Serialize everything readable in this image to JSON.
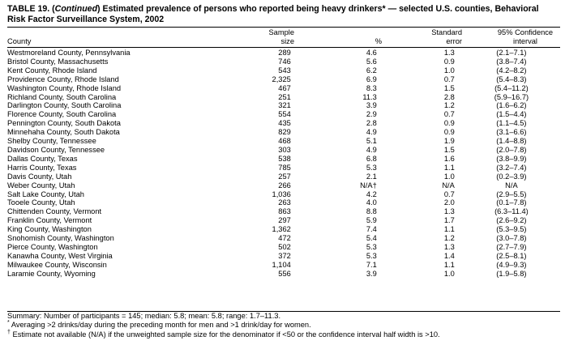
{
  "title": {
    "prefix": "TABLE 19. (",
    "italic": "Continued",
    "rest_line1": ") Estimated prevalence of persons who reported being heavy drinkers* — selected U.S. counties, Behavioral",
    "line2": "Risk Factor Surveillance System, 2002"
  },
  "headers": {
    "county": "County",
    "sample_size_1": "Sample",
    "sample_size_2": "size",
    "pct": "%",
    "se_1": "Standard",
    "se_2": "error",
    "ci_1": "95% Confidence",
    "ci_2": "interval"
  },
  "rows": [
    {
      "county": "Westmoreland County, Pennsylvania",
      "size": "289",
      "pct": "4.6",
      "se": "1.3",
      "ci": "(2.1–7.1)"
    },
    {
      "county": "Bristol County, Massachusetts",
      "size": "746",
      "pct": "5.6",
      "se": "0.9",
      "ci": "(3.8–7.4)"
    },
    {
      "county": "Kent County, Rhode Island",
      "size": "543",
      "pct": "6.2",
      "se": "1.0",
      "ci": "(4.2–8.2)"
    },
    {
      "county": "Providence County, Rhode Island",
      "size": "2,325",
      "pct": "6.9",
      "se": "0.7",
      "ci": "(5.4–8.3)"
    },
    {
      "county": "Washington County, Rhode Island",
      "size": "467",
      "pct": "8.3",
      "se": "1.5",
      "ci": "(5.4–11.2)"
    },
    {
      "county": "Richland County, South Carolina",
      "size": "251",
      "pct": "11.3",
      "se": "2.8",
      "ci": "(5.9–16.7)"
    },
    {
      "county": "Darlington County, South Carolina",
      "size": "321",
      "pct": "3.9",
      "se": "1.2",
      "ci": "(1.6–6.2)"
    },
    {
      "county": "Florence County, South Carolina",
      "size": "554",
      "pct": "2.9",
      "se": "0.7",
      "ci": "(1.5–4.4)"
    },
    {
      "county": "Pennington County, South Dakota",
      "size": "435",
      "pct": "2.8",
      "se": "0.9",
      "ci": "(1.1–4.5)"
    },
    {
      "county": "Minnehaha County, South Dakota",
      "size": "829",
      "pct": "4.9",
      "se": "0.9",
      "ci": "(3.1–6.6)"
    },
    {
      "county": "Shelby County, Tennessee",
      "size": "468",
      "pct": "5.1",
      "se": "1.9",
      "ci": "(1.4–8.8)"
    },
    {
      "county": "Davidson County, Tennessee",
      "size": "303",
      "pct": "4.9",
      "se": "1.5",
      "ci": "(2.0–7.8)"
    },
    {
      "county": "Dallas County, Texas",
      "size": "538",
      "pct": "6.8",
      "se": "1.6",
      "ci": "(3.8–9.9)"
    },
    {
      "county": "Harris County, Texas",
      "size": "785",
      "pct": "5.3",
      "se": "1.1",
      "ci": "(3.2–7.4)"
    },
    {
      "county": "Davis County, Utah",
      "size": "257",
      "pct": "2.1",
      "se": "1.0",
      "ci": "(0.2–3.9)"
    },
    {
      "county": "Weber County, Utah",
      "size": "266",
      "pct": "N/A†",
      "se": "N/A",
      "ci": "N/A"
    },
    {
      "county": "Salt Lake County, Utah",
      "size": "1,036",
      "pct": "4.2",
      "se": "0.7",
      "ci": "(2.9–5.5)"
    },
    {
      "county": "Tooele County, Utah",
      "size": "263",
      "pct": "4.0",
      "se": "2.0",
      "ci": "(0.1–7.8)"
    },
    {
      "county": "Chittenden County, Vermont",
      "size": "863",
      "pct": "8.8",
      "se": "1.3",
      "ci": "(6.3–11.4)"
    },
    {
      "county": "Franklin County, Vermont",
      "size": "297",
      "pct": "5.9",
      "se": "1.7",
      "ci": "(2.6–9.2)"
    },
    {
      "county": "King County, Washington",
      "size": "1,362",
      "pct": "7.4",
      "se": "1.1",
      "ci": "(5.3–9.5)"
    },
    {
      "county": "Snohomish County, Washington",
      "size": "472",
      "pct": "5.4",
      "se": "1.2",
      "ci": "(3.0–7.8)"
    },
    {
      "county": "Pierce County, Washington",
      "size": "502",
      "pct": "5.3",
      "se": "1.3",
      "ci": "(2.7–7.9)"
    },
    {
      "county": "Kanawha County, West Virginia",
      "size": "372",
      "pct": "5.3",
      "se": "1.4",
      "ci": "(2.5–8.1)"
    },
    {
      "county": "Milwaukee County, Wisconsin",
      "size": "1,104",
      "pct": "7.1",
      "se": "1.1",
      "ci": "(4.9–9.3)"
    },
    {
      "county": "Laramie County, Wyoming",
      "size": "556",
      "pct": "3.9",
      "se": "1.0",
      "ci": "(1.9–5.8)"
    }
  ],
  "footnotes": {
    "summary": "Summary: Number of participants = 145; median: 5.8; mean: 5.8; range: 1.7–11.3.",
    "star_mark": "*",
    "star": "Averaging >2 drinks/day during the preceding month for men and >1 drink/day for women.",
    "dagger_mark": "†",
    "dagger": "Estimate not available (N/A) if the unweighted sample size for the denominator if <50 or the confidence interval half width is >10."
  }
}
